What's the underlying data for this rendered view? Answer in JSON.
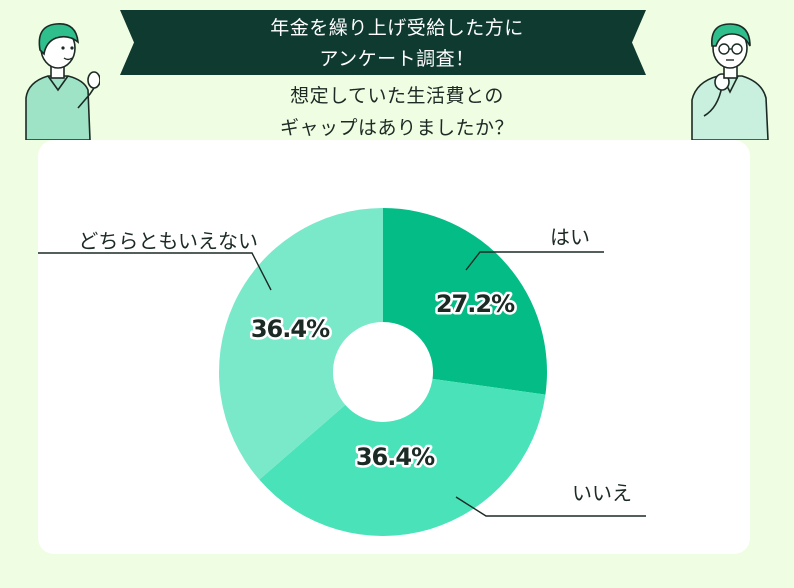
{
  "title": {
    "banner_line1": "年金を繰り上げ受給した方に",
    "banner_line2": "アンケート調査！",
    "question_line1": "想定していた生活費との",
    "question_line2": "ギャップはありましたか？"
  },
  "colors": {
    "background": "#effde2",
    "banner": "#0f3a30",
    "slice_yes": "#04bd86",
    "slice_no": "#4ae2b9",
    "slice_unsure": "#7ae9c9"
  },
  "chart_data": {
    "type": "pie",
    "style": "donut",
    "categories": [
      "はい",
      "いいえ",
      "どちらともいえない"
    ],
    "values": [
      27.2,
      36.4,
      36.4
    ],
    "value_labels": [
      "27.2%",
      "36.4%",
      "36.4%"
    ],
    "unit": "%",
    "title": "想定していた生活費とのギャップはありましたか？"
  }
}
